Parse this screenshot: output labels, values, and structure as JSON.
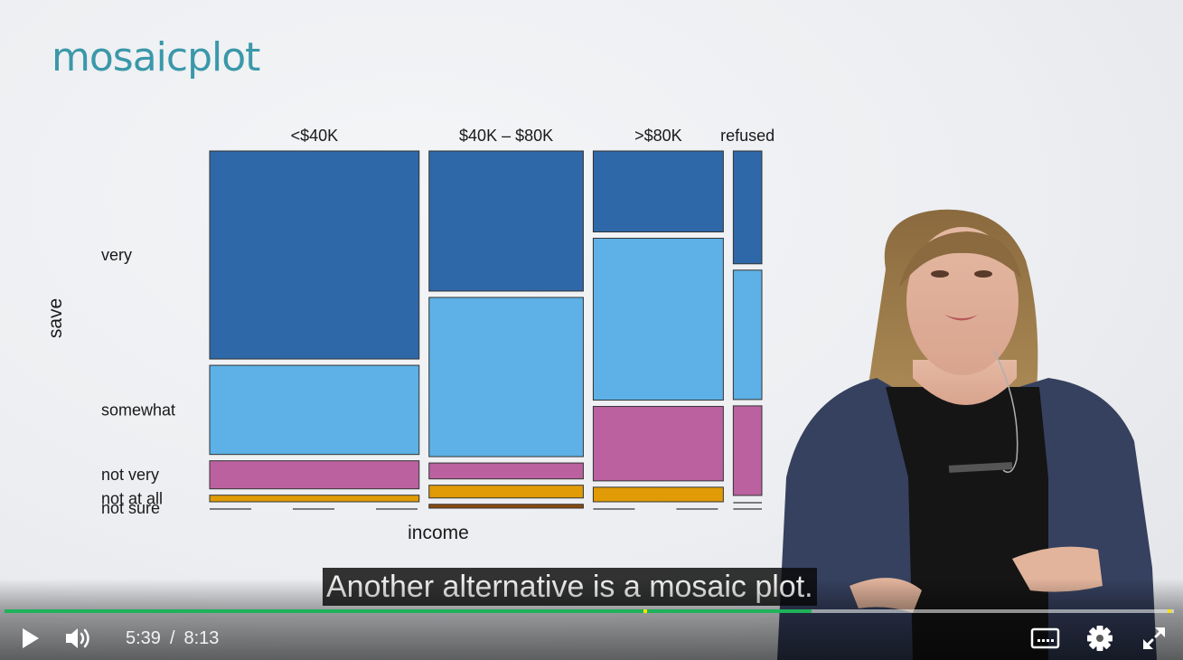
{
  "slide": {
    "title": "mosaicplot"
  },
  "chart_data": {
    "type": "mosaic",
    "xlabel": "income",
    "ylabel": "save",
    "categories": [
      "<$40K",
      "$40K – $80K",
      ">$80K",
      "refused"
    ],
    "category_widths": [
      0.425,
      0.313,
      0.264,
      0.058
    ],
    "levels": [
      "very",
      "somewhat",
      "not very",
      "not at all",
      "not sure"
    ],
    "colors": [
      "#2e68a8",
      "#5db1e6",
      "#bb619f",
      "#e19b06",
      "#8a4b0e"
    ],
    "proportions": [
      [
        0.63,
        0.27,
        0.085,
        0.02,
        0.0
      ],
      [
        0.44,
        0.5,
        0.05,
        0.04,
        0.012
      ],
      [
        0.25,
        0.5,
        0.23,
        0.045,
        0.0
      ],
      [
        0.34,
        0.39,
        0.27,
        0.0,
        0.0
      ]
    ]
  },
  "caption": {
    "text": "Another alternative is a mosaic plot."
  },
  "player": {
    "current_time": "5:39",
    "separator": "/",
    "duration": "8:13",
    "progress_fraction": 0.69,
    "buffered_fraction": 0.69,
    "marker_fractions": [
      0.548,
      0.996
    ],
    "accent_color": "#1fb25a",
    "marker_color": "#f5e400",
    "icons": {
      "play": "play-icon",
      "volume": "volume-icon",
      "captions": "closed-captions-icon",
      "settings": "gear-icon",
      "fullscreen": "fullscreen-icon"
    }
  }
}
